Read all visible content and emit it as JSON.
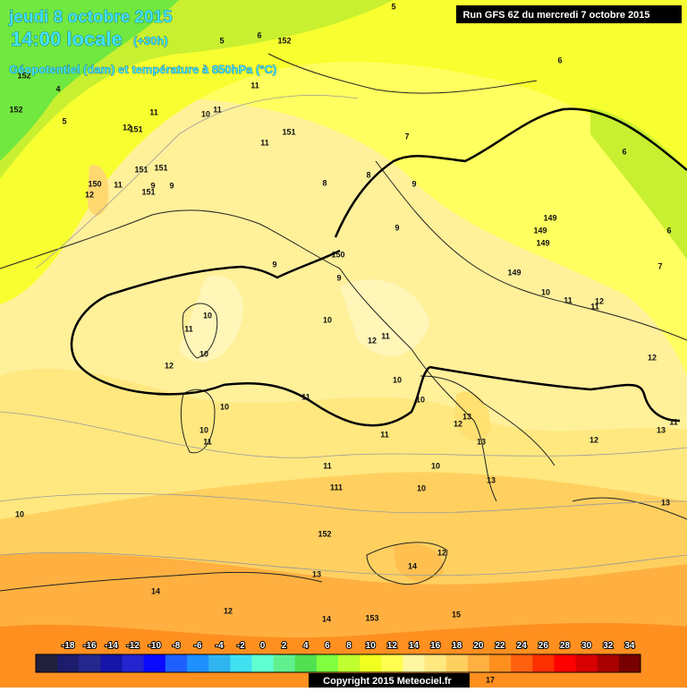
{
  "header": {
    "date": "jeudi 8 octobre 2015",
    "time": "14:00 locale",
    "lead": "(+30h)",
    "parameter": "Géopotentiel (dam) et température à 850hPa (°C)",
    "run": "Run GFS 6Z du mercredi 7 octobre 2015"
  },
  "map_labels": [
    5,
    152,
    6,
    5,
    4,
    5,
    152,
    152,
    11,
    11,
    11,
    10,
    12,
    151,
    151,
    11,
    7,
    8,
    9,
    8,
    150,
    11,
    12,
    151,
    151,
    9,
    9,
    151,
    149,
    149,
    149,
    6,
    7,
    9,
    9,
    150,
    9,
    149,
    10,
    11,
    12,
    11,
    10,
    11,
    10,
    12,
    10,
    12,
    11,
    10,
    10,
    11,
    10,
    12,
    10,
    11,
    11,
    13,
    12,
    13,
    12,
    13,
    11,
    11,
    10,
    111,
    10,
    13,
    13,
    10,
    152,
    12,
    14,
    13,
    14,
    153,
    14,
    15,
    12,
    17,
    6,
    6
  ],
  "colorbar": {
    "labels": [
      -18,
      -16,
      -14,
      -12,
      -10,
      -8,
      -6,
      -4,
      -2,
      0,
      2,
      4,
      6,
      8,
      10,
      12,
      14,
      16,
      18,
      20,
      22,
      24,
      26,
      28,
      30,
      32,
      34
    ],
    "colors": [
      "#20203c",
      "#1c1c6c",
      "#24288c",
      "#1414a8",
      "#2424d0",
      "#0a0aff",
      "#1e60ff",
      "#1e90ff",
      "#30b4f0",
      "#40e0f0",
      "#60ffd0",
      "#60f090",
      "#50e050",
      "#80ff40",
      "#c0ff30",
      "#f0ff20",
      "#ffff50",
      "#fff6a0",
      "#ffe880",
      "#ffd060",
      "#ffb040",
      "#ff9020",
      "#ff6010",
      "#ff3000",
      "#ff0000",
      "#d80000",
      "#a80000",
      "#780000"
    ]
  },
  "footer": {
    "copyright": "Copyright 2015 Meteociel.fr"
  }
}
